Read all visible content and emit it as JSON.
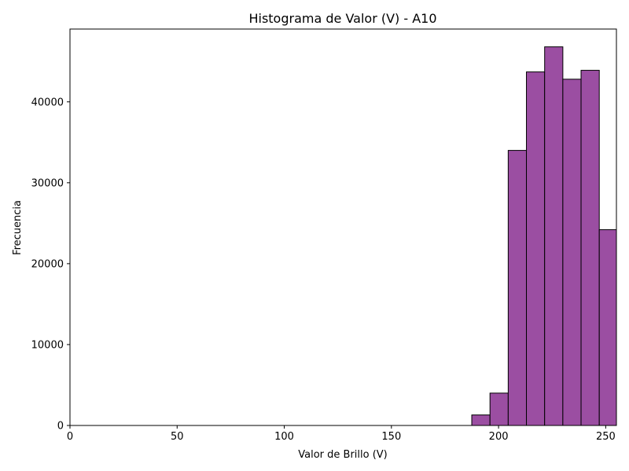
{
  "chart_data": {
    "type": "bar",
    "title": "Histograma de Valor (V) - A10",
    "xlabel": "Valor de Brillo (V)",
    "ylabel": "Frecuencia",
    "xlim": [
      0,
      255
    ],
    "ylim": [
      0,
      49000
    ],
    "xticks": [
      0,
      50,
      100,
      150,
      200,
      250
    ],
    "yticks": [
      0,
      10000,
      20000,
      30000,
      40000
    ],
    "grid": false,
    "bar_color": "#9b4ea2",
    "edge_color": "#000000",
    "bins": [
      {
        "x0": 187.5,
        "x1": 196.0,
        "count": 1300
      },
      {
        "x0": 196.0,
        "x1": 204.5,
        "count": 4000
      },
      {
        "x0": 204.5,
        "x1": 213.0,
        "count": 34000
      },
      {
        "x0": 213.0,
        "x1": 221.5,
        "count": 43700
      },
      {
        "x0": 221.5,
        "x1": 230.0,
        "count": 46800
      },
      {
        "x0": 230.0,
        "x1": 238.5,
        "count": 42800
      },
      {
        "x0": 238.5,
        "x1": 247.0,
        "count": 43900
      },
      {
        "x0": 247.0,
        "x1": 255.5,
        "count": 24200
      }
    ]
  }
}
